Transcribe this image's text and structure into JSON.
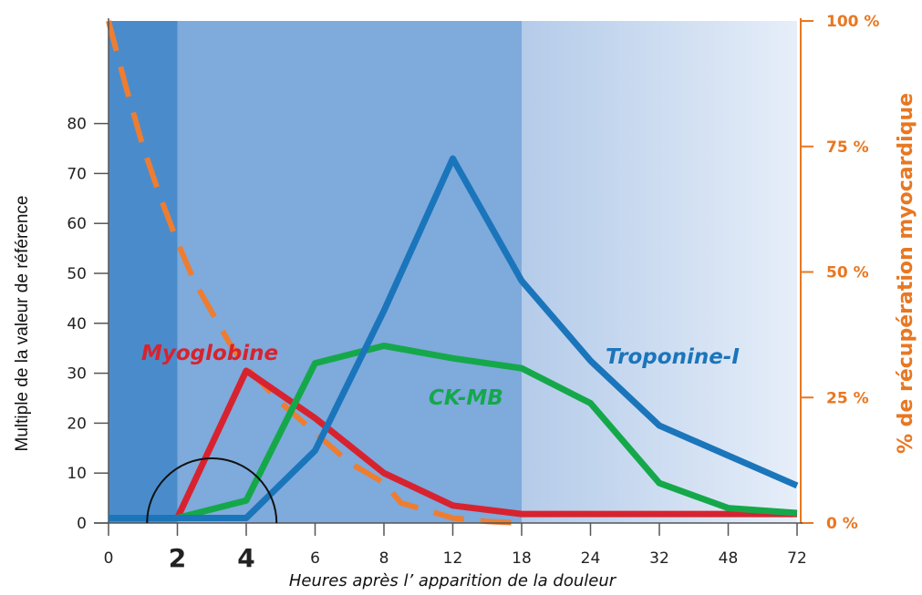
{
  "chart_data": {
    "type": "line",
    "title": "",
    "xlabel": "Heures après l’ apparition de la douleur",
    "ylabel": "Multiple de la valeur de référence",
    "y2label": "% de récupération myocardique",
    "x_ticks": [
      "0",
      "2",
      "4",
      "6",
      "8",
      "12",
      "18",
      "24",
      "32",
      "48",
      "72"
    ],
    "x_ticks_emphasized": [
      "2",
      "4"
    ],
    "ylim": [
      0,
      100
    ],
    "y_ticks": [
      "0",
      "10",
      "20",
      "30",
      "40",
      "50",
      "60",
      "70",
      "80"
    ],
    "y2lim": [
      0,
      100
    ],
    "y2_ticks": [
      "0 %",
      "25 %",
      "50 %",
      "75 %",
      "100 %"
    ],
    "series": [
      {
        "name": "Myoglobine",
        "color": "#d7232f",
        "axis": "left",
        "values": [
          1,
          1,
          30.5,
          21,
          10,
          3.5,
          1.8,
          1.8,
          1.8,
          1.8,
          1.8
        ]
      },
      {
        "name": "CK-MB",
        "color": "#15a84a",
        "axis": "left",
        "values": [
          1,
          1,
          4.5,
          32,
          35.5,
          33,
          31,
          24,
          8,
          3,
          2
        ]
      },
      {
        "name": "Troponine-I",
        "color": "#1b75bb",
        "axis": "left",
        "values": [
          1,
          1,
          1,
          14.5,
          42.5,
          73,
          48.5,
          32.5,
          19.5,
          13.5,
          7.5
        ]
      },
      {
        "name": "",
        "color": "#ee7d31",
        "axis": "right",
        "style": "dashed",
        "x": [
          "0",
          "0.5",
          "1",
          "1.5",
          "2",
          "2.5",
          "3",
          "3.5",
          "4",
          "5",
          "6",
          "7",
          "8",
          "9",
          "12",
          "15",
          "18"
        ],
        "values": [
          100,
          87,
          75,
          65,
          56,
          48,
          42,
          36,
          31,
          24,
          18,
          12,
          8,
          4,
          1,
          0.3,
          0
        ]
      }
    ],
    "background_bands": [
      {
        "x_from": "0",
        "x_to": "2",
        "color": "#4a8ccb"
      },
      {
        "x_from": "2",
        "x_to": "18",
        "color": "#7eaadc"
      },
      {
        "x_from": "18",
        "x_to": "72",
        "color_from": "#b4cbe9",
        "color_to": "#e6eef9"
      }
    ],
    "annotation": "semicircle arc centered between x = 2 and x = 4",
    "grid": false,
    "legend": "inline labels"
  }
}
